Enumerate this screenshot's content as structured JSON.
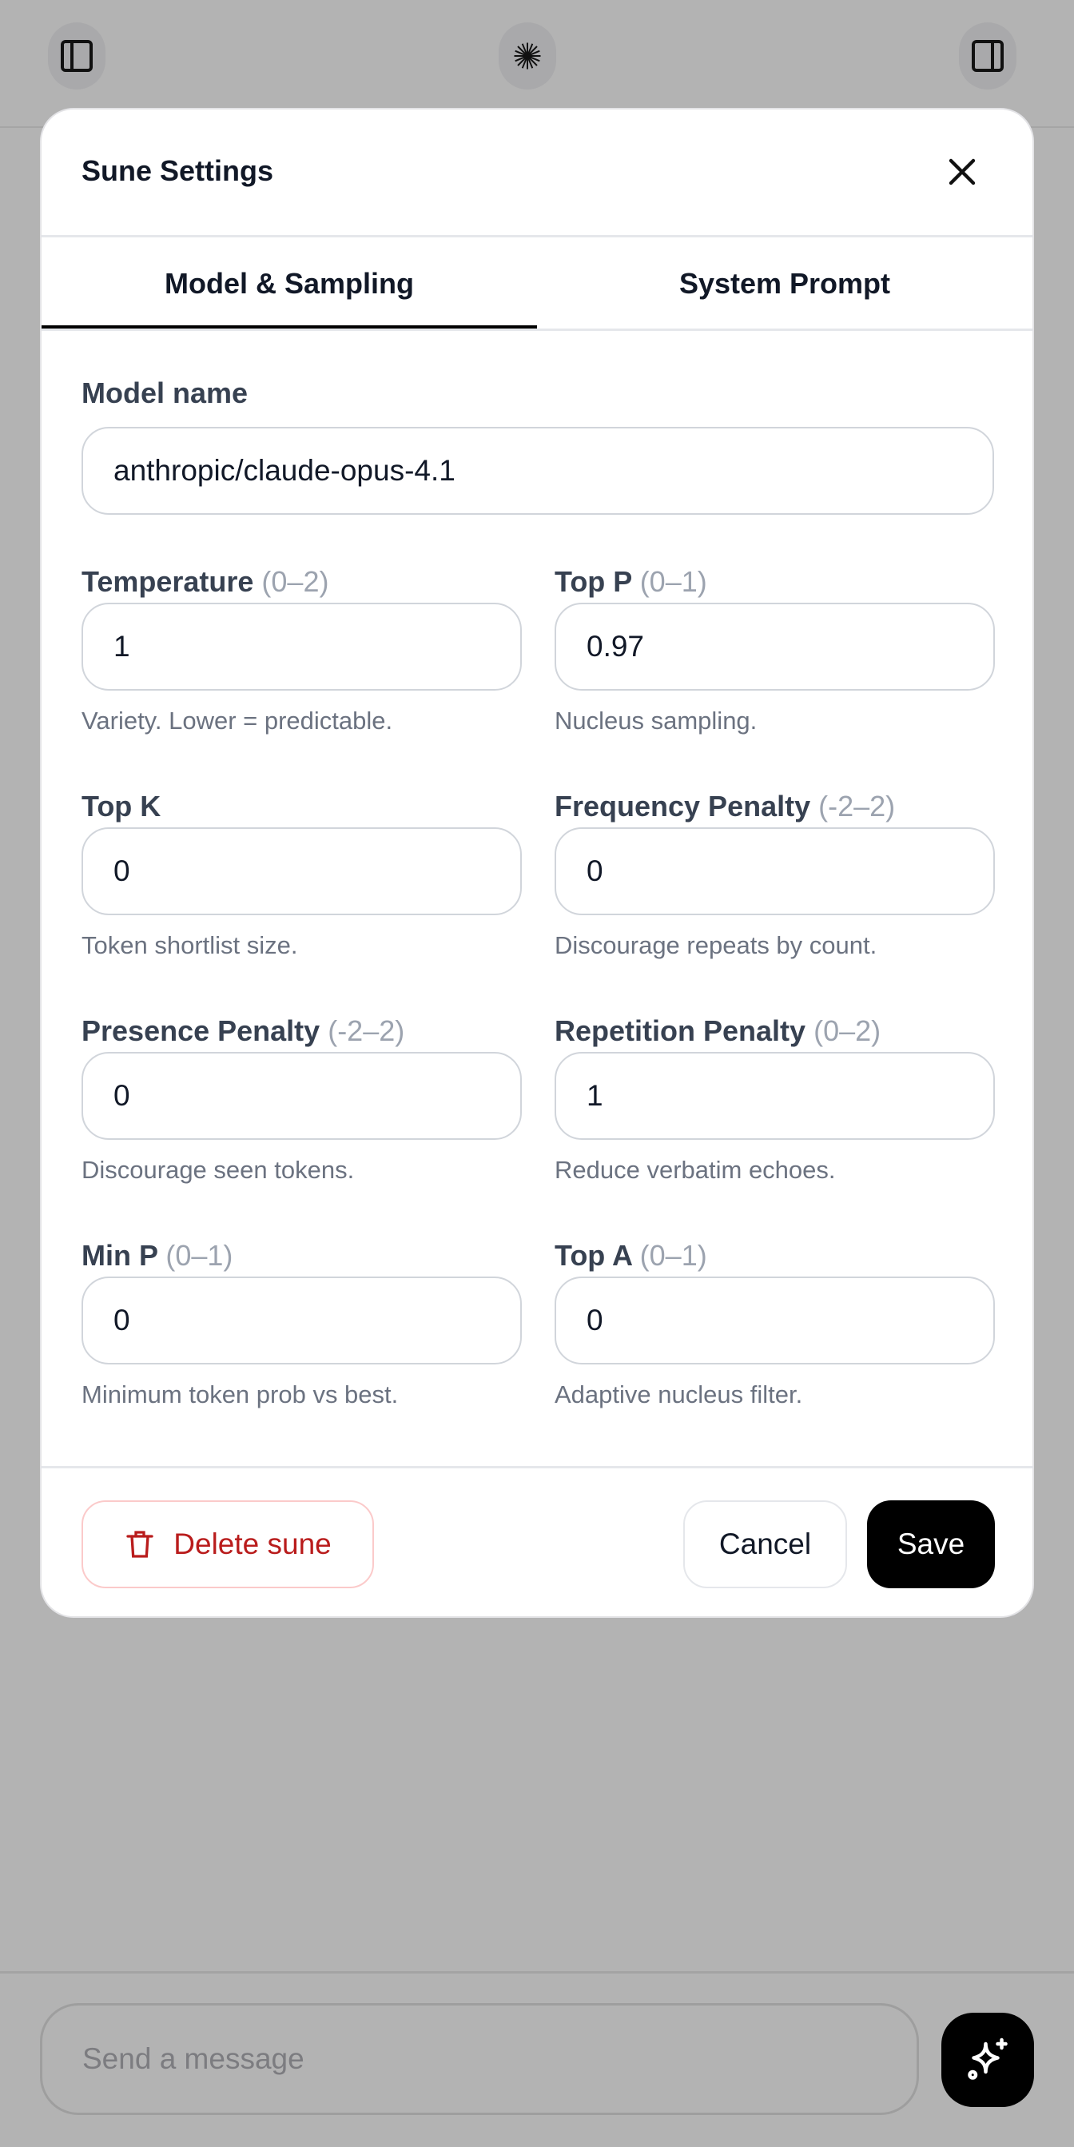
{
  "header": {
    "left_icon": "sidebar-left-icon",
    "center_icon": "starburst-icon",
    "right_icon": "sidebar-right-icon"
  },
  "modal": {
    "title": "Sune Settings",
    "close_icon": "close-icon",
    "tabs": [
      {
        "label": "Model & Sampling",
        "active": true
      },
      {
        "label": "System Prompt",
        "active": false
      }
    ],
    "model_name": {
      "label": "Model name",
      "value": "anthropic/claude-opus-4.1"
    },
    "fields": [
      {
        "label": "Temperature",
        "range": "(0–2)",
        "value": "1",
        "hint": "Variety. Lower = predictable."
      },
      {
        "label": "Top P",
        "range": "(0–1)",
        "value": "0.97",
        "hint": "Nucleus sampling."
      },
      {
        "label": "Top K",
        "range": "",
        "value": "0",
        "hint": "Token shortlist size."
      },
      {
        "label": "Frequency Penalty",
        "range": "(-2–2)",
        "value": "0",
        "hint": "Discourage repeats by count."
      },
      {
        "label": "Presence Penalty",
        "range": "(-2–2)",
        "value": "0",
        "hint": "Discourage seen tokens."
      },
      {
        "label": "Repetition Penalty",
        "range": "(0–2)",
        "value": "1",
        "hint": "Reduce verbatim echoes."
      },
      {
        "label": "Min P",
        "range": "(0–1)",
        "value": "0",
        "hint": "Minimum token prob vs best."
      },
      {
        "label": "Top A",
        "range": "(0–1)",
        "value": "0",
        "hint": "Adaptive nucleus filter."
      }
    ],
    "footer": {
      "delete_label": "Delete sune",
      "delete_icon": "trash-icon",
      "cancel_label": "Cancel",
      "save_label": "Save"
    }
  },
  "composer": {
    "placeholder": "Send a message",
    "send_icon": "sparkles-icon"
  },
  "colors": {
    "danger": "#b91c1c",
    "primary": "#000000",
    "overlay": "#b3b3b3"
  }
}
